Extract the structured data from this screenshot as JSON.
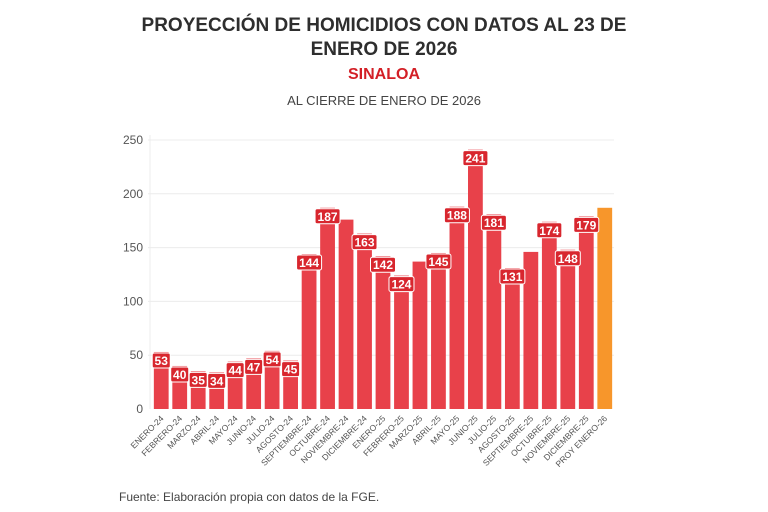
{
  "header": {
    "title": "PROYECCIÓN DE HOMICIDIOS CON DATOS AL 23 DE ENERO DE 2026",
    "subtitle": "SINALOA",
    "subsubtitle": "AL CIERRE DE ENERO DE 2026"
  },
  "footer": {
    "source": "Fuente: Elaboración propia con datos de la FGE."
  },
  "colors": {
    "bar": "#e8414a",
    "projection_bar": "#f7962b",
    "label_bg": "#d8262e",
    "grid": "#ececec",
    "subtitle": "#d31f26"
  },
  "chart_data": {
    "type": "bar",
    "title": "PROYECCIÓN DE HOMICIDIOS CON DATOS AL 23 DE ENERO DE 2026",
    "subtitle": "SINALOA — AL CIERRE DE ENERO DE 2026",
    "xlabel": "",
    "ylabel": "",
    "ylim": [
      0,
      250
    ],
    "yticks": [
      0,
      50,
      100,
      150,
      200,
      250
    ],
    "grid": true,
    "categories": [
      "ENERO-24",
      "FEBRERO-24",
      "MARZO-24",
      "ABRIL-24",
      "MAYO-24",
      "JUNIO-24",
      "JULIO-24",
      "AGOSTO-24",
      "SEPTIEMBRE-24",
      "OCTUBRE-24",
      "NOVIEMBRE-24",
      "DICIEMBRE-24",
      "ENERO-25",
      "FEBRERO-25",
      "MARZO-25",
      "ABRIL-25",
      "MAYO-25",
      "JUNIO-25",
      "JULIO-25",
      "AGOSTO-25",
      "SEPTIEMBRE-25",
      "OCTUBRE-25",
      "NOVIEMBRE-25",
      "DICIEMBRE-25",
      "PROY ENERO-26"
    ],
    "values": [
      53,
      40,
      35,
      34,
      44,
      47,
      54,
      45,
      144,
      187,
      176,
      163,
      142,
      124,
      137,
      145,
      188,
      241,
      181,
      131,
      146,
      174,
      148,
      179,
      187
    ],
    "labeled": [
      true,
      true,
      true,
      true,
      true,
      true,
      true,
      true,
      true,
      true,
      false,
      true,
      true,
      true,
      false,
      true,
      true,
      true,
      true,
      true,
      false,
      true,
      true,
      true,
      false
    ],
    "projection_index": 24
  }
}
